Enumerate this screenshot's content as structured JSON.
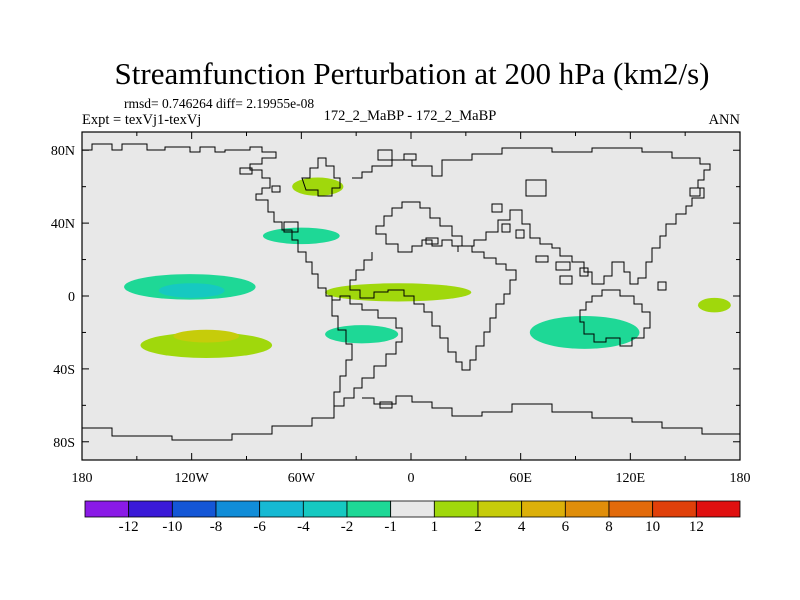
{
  "chart_data": {
    "type": "heatmap",
    "title": "Streamfunction Perturbation at 200 hPa (km2/s)",
    "stats_label": "rmsd= 0.746264 diff= 2.19955e-08",
    "expt_label": "Expt = texVj1-texVj",
    "center_label": "172_2_MaBP - 172_2_MaBP",
    "period_label": "ANN",
    "x_range": [
      -180,
      180
    ],
    "y_range": [
      -90,
      90
    ],
    "x_ticks": [
      {
        "value": -180,
        "label": "180"
      },
      {
        "value": -120,
        "label": "120W"
      },
      {
        "value": -60,
        "label": "60W"
      },
      {
        "value": 0,
        "label": "0"
      },
      {
        "value": 60,
        "label": "60E"
      },
      {
        "value": 120,
        "label": "120E"
      },
      {
        "value": 180,
        "label": "180"
      }
    ],
    "y_ticks": [
      {
        "value": 80,
        "label": "80N"
      },
      {
        "value": 40,
        "label": "40N"
      },
      {
        "value": 0,
        "label": "0"
      },
      {
        "value": -40,
        "label": "40S"
      },
      {
        "value": -80,
        "label": "80S"
      }
    ],
    "colorbar": {
      "colors": [
        "#8a1ae6",
        "#3a1ad8",
        "#1456d6",
        "#118dd8",
        "#16b9d3",
        "#16c9c1",
        "#1ed896",
        "#e8e8e8",
        "#a0d80c",
        "#c6cc0a",
        "#dcb00a",
        "#e08e0a",
        "#e26a0a",
        "#e0400a",
        "#e01010"
      ],
      "labels": [
        "-12",
        "-10",
        "-8",
        "-6",
        "-4",
        "-2",
        "-1",
        "1",
        "2",
        "4",
        "6",
        "8",
        "10",
        "12"
      ]
    },
    "blobs": [
      {
        "lon": -121,
        "lat": 5,
        "dlon": 36,
        "dlat": 7,
        "color": "#1ed896",
        "level": "-2 to -1"
      },
      {
        "lon": -120,
        "lat": 3,
        "dlon": 18,
        "dlat": 4,
        "color": "#16c9c1",
        "level": "-4 to -2"
      },
      {
        "lon": -112,
        "lat": -27,
        "dlon": 36,
        "dlat": 7,
        "color": "#a0d80c",
        "level": "1 to 2"
      },
      {
        "lon": -112,
        "lat": -22,
        "dlon": 18,
        "dlat": 3.5,
        "color": "#c6cc0a",
        "level": "2 to 4"
      },
      {
        "lon": -51,
        "lat": 60,
        "dlon": 14,
        "dlat": 5,
        "color": "#a0d80c",
        "level": "1 to 2"
      },
      {
        "lon": -60,
        "lat": 33,
        "dlon": 21,
        "dlat": 4.5,
        "color": "#1ed896",
        "level": "-2 to -1"
      },
      {
        "lon": -7,
        "lat": 2,
        "dlon": 40,
        "dlat": 5,
        "color": "#a0d80c",
        "level": "1 to 2"
      },
      {
        "lon": -27,
        "lat": -21,
        "dlon": 20,
        "dlat": 5,
        "color": "#1ed896",
        "level": "-2 to -1"
      },
      {
        "lon": 95,
        "lat": -20,
        "dlon": 30,
        "dlat": 9,
        "color": "#1ed896",
        "level": "-2 to -1"
      },
      {
        "lon": 166,
        "lat": -5,
        "dlon": 9,
        "dlat": 4,
        "color": "#a0d80c",
        "level": "1 to 2"
      }
    ]
  }
}
